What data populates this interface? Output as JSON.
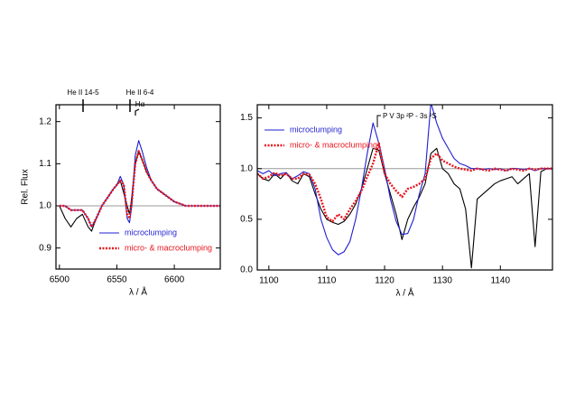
{
  "chart_data": [
    {
      "type": "line",
      "x": [
        6500,
        6505,
        6510,
        6515,
        6520,
        6525,
        6528,
        6532,
        6537,
        6542,
        6547,
        6550,
        6553,
        6556,
        6559,
        6561,
        6563,
        6566,
        6569,
        6572,
        6576,
        6580,
        6585,
        6590,
        6600,
        6610,
        6620,
        6630,
        6640
      ],
      "series": [
        {
          "color": "#000000",
          "values": [
            1.0,
            0.97,
            0.95,
            0.97,
            0.98,
            0.95,
            0.94,
            0.97,
            1.0,
            1.02,
            1.04,
            1.05,
            1.06,
            1.03,
            1.0,
            0.98,
            1.02,
            1.1,
            1.13,
            1.11,
            1.08,
            1.06,
            1.04,
            1.03,
            1.01,
            1.0,
            1.0,
            1.0,
            1.0
          ]
        },
        {
          "name": "microclumping",
          "color": "#1f1fd0",
          "values": [
            1.0,
            1.0,
            0.99,
            0.99,
            0.99,
            0.97,
            0.95,
            0.97,
            1.0,
            1.02,
            1.04,
            1.05,
            1.07,
            1.05,
            0.97,
            0.96,
            1.0,
            1.12,
            1.155,
            1.13,
            1.09,
            1.06,
            1.04,
            1.03,
            1.01,
            1.0,
            1.0,
            1.0,
            1.0
          ]
        },
        {
          "name": "micro- & macroclumping",
          "color": "#e8141c",
          "dashed": true,
          "values": [
            1.0,
            1.0,
            0.99,
            0.99,
            0.99,
            0.97,
            0.95,
            0.97,
            1.0,
            1.02,
            1.04,
            1.05,
            1.06,
            1.05,
            0.98,
            0.97,
            1.01,
            1.1,
            1.13,
            1.11,
            1.08,
            1.06,
            1.04,
            1.03,
            1.01,
            1.0,
            1.0,
            1.0,
            1.0
          ]
        }
      ],
      "xlim": [
        6497,
        6640
      ],
      "ylim": [
        0.85,
        1.24
      ],
      "xticks": [
        6500,
        6550,
        6600
      ],
      "yticks": [
        0.9,
        {
          "value": 1,
          "label": "1.0"
        },
        1.1,
        1.2
      ],
      "xlabel": "λ / Å",
      "ylabel": "Rel. Flux",
      "hline": 1,
      "legend": "lower right",
      "annotations": [
        "He II 14-5",
        "He II 6-4",
        "Hα"
      ]
    },
    {
      "type": "line",
      "x": [
        1098,
        1099,
        1100,
        1101,
        1102,
        1103,
        1104,
        1105,
        1106,
        1107,
        1108,
        1109,
        1110,
        1111,
        1112,
        1113,
        1114,
        1115,
        1116,
        1117,
        1118,
        1119,
        1120,
        1121,
        1122,
        1123,
        1124,
        1125,
        1126,
        1127,
        1128,
        1129,
        1130,
        1131,
        1132,
        1133,
        1134,
        1135,
        1136,
        1137,
        1138,
        1139,
        1140,
        1141,
        1142,
        1143,
        1144,
        1145,
        1146,
        1147,
        1148,
        1149,
        1150
      ],
      "series": [
        {
          "color": "#000000",
          "values": [
            0.95,
            0.9,
            0.88,
            0.95,
            0.9,
            0.96,
            0.88,
            0.85,
            0.95,
            0.92,
            0.75,
            0.6,
            0.5,
            0.47,
            0.45,
            0.48,
            0.55,
            0.65,
            0.8,
            1.0,
            1.2,
            1.18,
            0.95,
            0.75,
            0.55,
            0.3,
            0.5,
            0.62,
            0.72,
            0.85,
            1.15,
            1.2,
            1.0,
            0.95,
            0.85,
            0.8,
            0.6,
            0.02,
            0.7,
            0.75,
            0.8,
            0.85,
            0.88,
            0.9,
            0.92,
            0.85,
            0.9,
            0.95,
            0.23,
            0.97,
            1.0,
            1.0,
            1.0
          ]
        },
        {
          "name": "microclumping",
          "color": "#1f1fd0",
          "values": [
            0.98,
            0.95,
            0.98,
            0.93,
            0.95,
            0.96,
            0.9,
            0.93,
            0.97,
            0.95,
            0.8,
            0.5,
            0.32,
            0.2,
            0.15,
            0.18,
            0.28,
            0.5,
            0.8,
            1.15,
            1.45,
            1.25,
            1.0,
            0.7,
            0.48,
            0.35,
            0.36,
            0.5,
            0.75,
            0.95,
            1.65,
            1.45,
            1.3,
            1.2,
            1.1,
            1.05,
            1.03,
            1.0,
            1.0,
            0.99,
            1.0,
            0.99,
            1.0,
            0.98,
            1.0,
            1.0,
            0.99,
            1.0,
            0.98,
            1.0,
            1.0,
            1.0,
            1.0
          ]
        },
        {
          "name": "micro- & macroclumping",
          "color": "#e8141c",
          "dashed": true,
          "values": [
            0.95,
            0.9,
            0.92,
            0.96,
            0.93,
            0.95,
            0.9,
            0.9,
            0.95,
            0.94,
            0.85,
            0.7,
            0.52,
            0.48,
            0.55,
            0.5,
            0.6,
            0.68,
            0.78,
            0.92,
            1.05,
            1.25,
            0.95,
            0.85,
            0.78,
            0.72,
            0.8,
            0.82,
            0.85,
            0.9,
            1.1,
            1.15,
            1.08,
            1.05,
            1.02,
            1.0,
            0.99,
            0.98,
            1.0,
            0.99,
            0.98,
            1.0,
            0.99,
            0.98,
            1.0,
            0.99,
            0.98,
            1.0,
            0.99,
            1.0,
            1.0,
            1.0,
            1.0
          ]
        }
      ],
      "xlim": [
        1098,
        1149
      ],
      "ylim": [
        0,
        1.63
      ],
      "xticks": [
        1100,
        1110,
        1120,
        1130,
        1140
      ],
      "yticks": [
        {
          "value": 0,
          "label": "0.0"
        },
        0.5,
        {
          "value": 1,
          "label": "1.0"
        },
        1.5
      ],
      "xlabel": "λ / Å",
      "hline": 1,
      "legend": "upper left",
      "annotations": [
        "P V 3p ²P - 3s ²S"
      ]
    }
  ]
}
